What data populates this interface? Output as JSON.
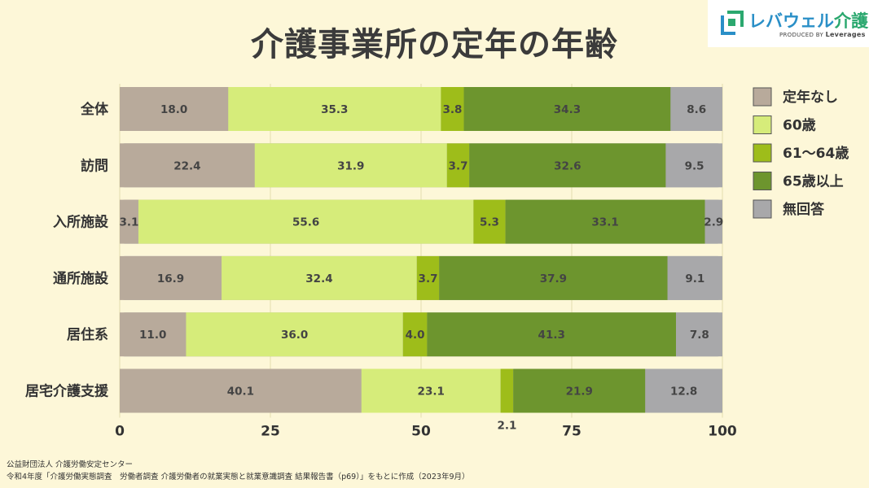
{
  "page": {
    "title": "介護事業所の定年の年齢",
    "logo": {
      "brand": "レバウェル",
      "brand_accent": "介護",
      "produced_by": "PRODUCED BY",
      "company": "Leverages"
    },
    "footer": [
      "公益財団法人 介護労働安定センター",
      "令和4年度「介護労働実態調査　労働者調査 介護労働者の就業実態と就業意識調査 結果報告書（p69）」をもとに作成（2023年9月）"
    ]
  },
  "chart_data": {
    "type": "bar",
    "orientation": "horizontal",
    "stacked": true,
    "categories": [
      "全体",
      "訪問",
      "入所施設",
      "通所施設",
      "居住系",
      "居宅介護支援"
    ],
    "series": [
      {
        "name": "定年なし",
        "color": "#b8aa9b",
        "values": [
          18.0,
          22.4,
          3.1,
          16.9,
          11.0,
          40.1
        ]
      },
      {
        "name": "60歳",
        "color": "#d6ec7a",
        "values": [
          35.3,
          31.9,
          55.6,
          32.4,
          36.0,
          23.1
        ]
      },
      {
        "name": "61〜64歳",
        "color": "#9ebd1a",
        "values": [
          3.8,
          3.7,
          5.3,
          3.7,
          4.0,
          2.1
        ]
      },
      {
        "name": "65歳以上",
        "color": "#6d952e",
        "values": [
          34.3,
          32.6,
          33.1,
          37.9,
          41.3,
          21.9
        ]
      },
      {
        "name": "無回答",
        "color": "#a8a8aa",
        "values": [
          8.6,
          9.5,
          2.9,
          9.1,
          7.8,
          12.8
        ]
      }
    ],
    "x_ticks": [
      "0",
      "25",
      "50",
      "75",
      "100"
    ],
    "xlim": [
      0,
      100
    ],
    "grid": true,
    "legend_position": "right",
    "outside_labels": {
      "居宅介護支援": "2.1"
    }
  }
}
